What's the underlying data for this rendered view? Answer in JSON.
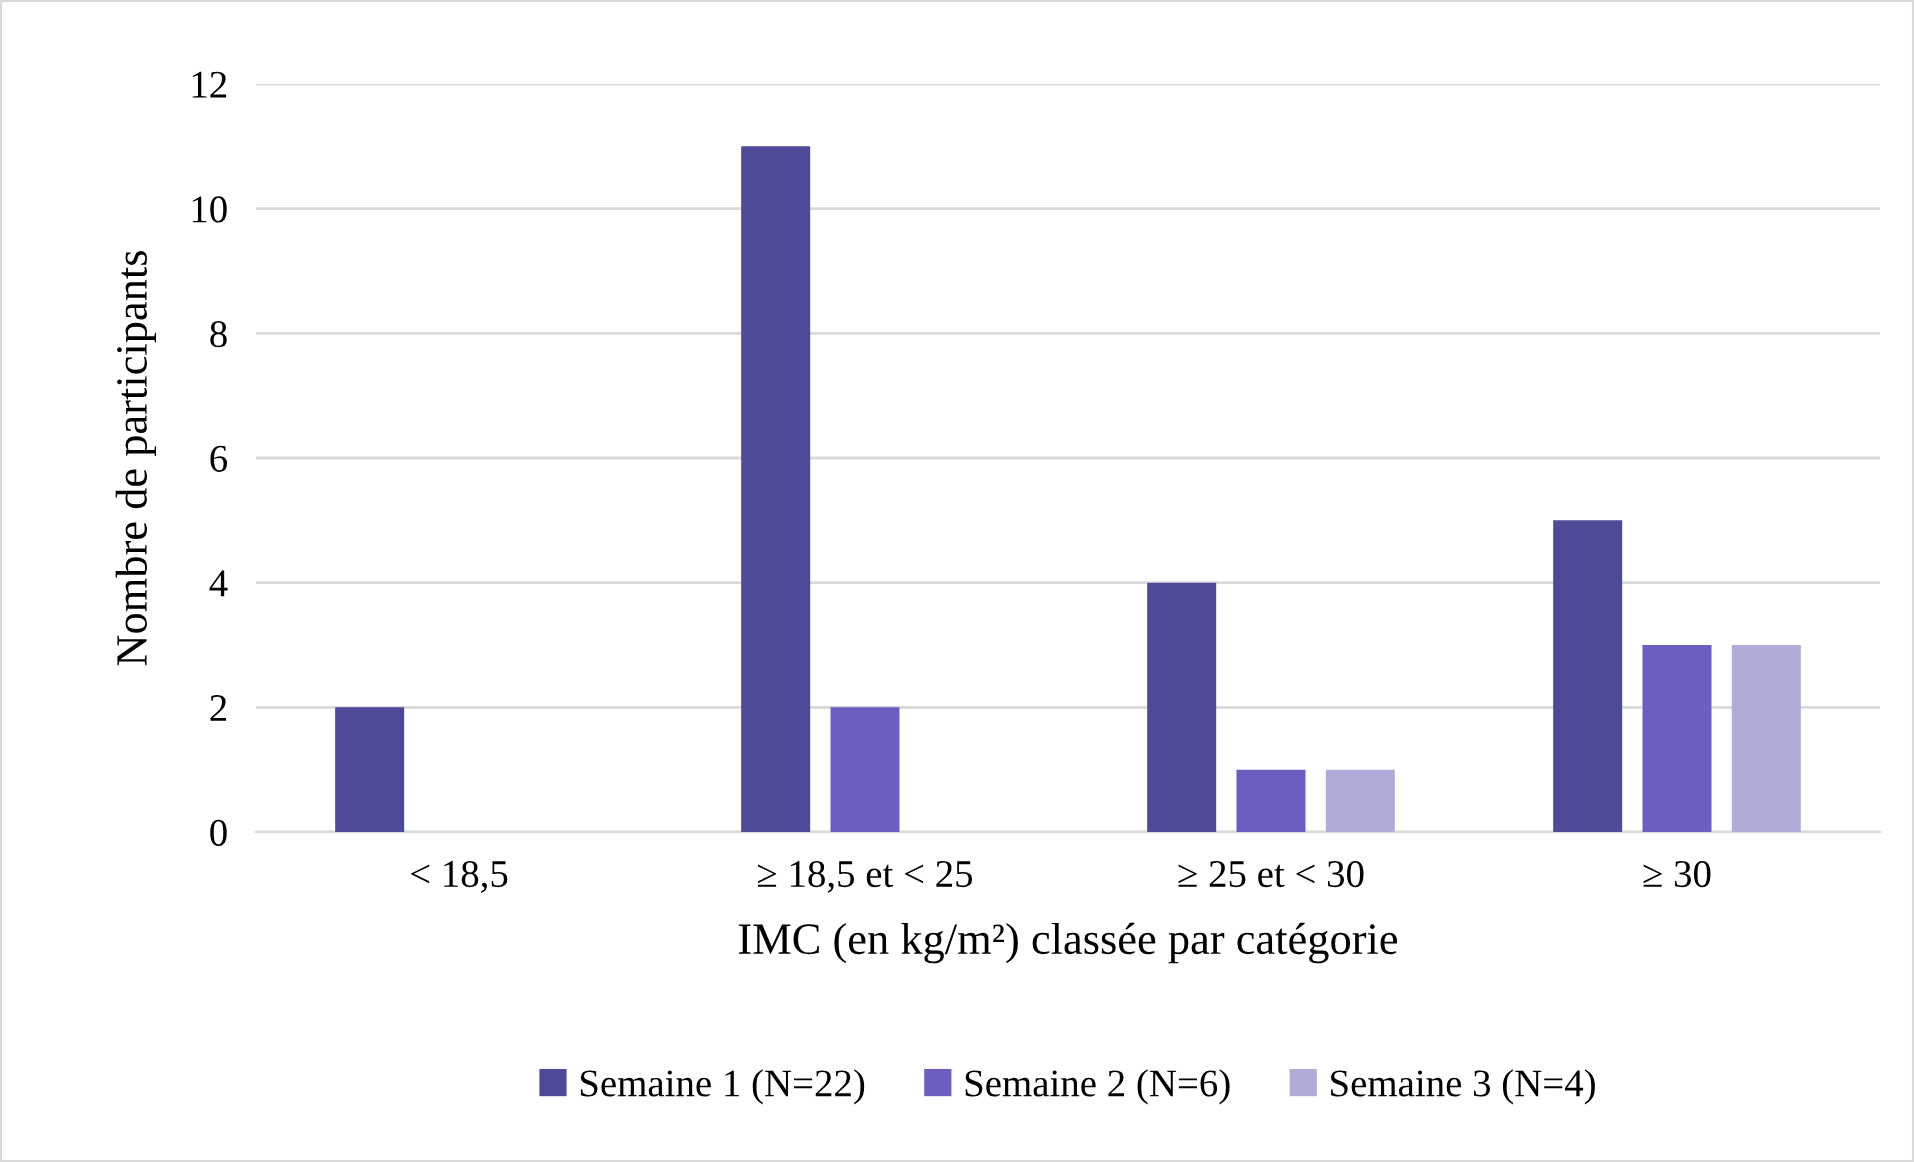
{
  "chart_data": {
    "type": "bar",
    "xlabel": "IMC (en kg/m²) classée par catégorie",
    "ylabel": "Nombre de participants",
    "categories": [
      "< 18,5",
      "≥ 18,5 et < 25",
      "≥ 25 et < 30",
      "≥ 30"
    ],
    "series": [
      {
        "name": "Semaine 1 (N=22)",
        "color": "#4f4a97",
        "values": [
          2,
          11,
          4,
          5
        ]
      },
      {
        "name": "Semaine 2 (N=6)",
        "color": "#6a5fbf",
        "values": [
          0,
          2,
          1,
          3
        ]
      },
      {
        "name": "Semaine 3 (N=4)",
        "color": "#b0acd8",
        "values": [
          0,
          0,
          1,
          3
        ]
      }
    ],
    "ylim": [
      0,
      12
    ],
    "yticks": [
      0,
      2,
      4,
      6,
      8,
      10,
      12
    ],
    "grid": "y",
    "legend": "bottom"
  }
}
